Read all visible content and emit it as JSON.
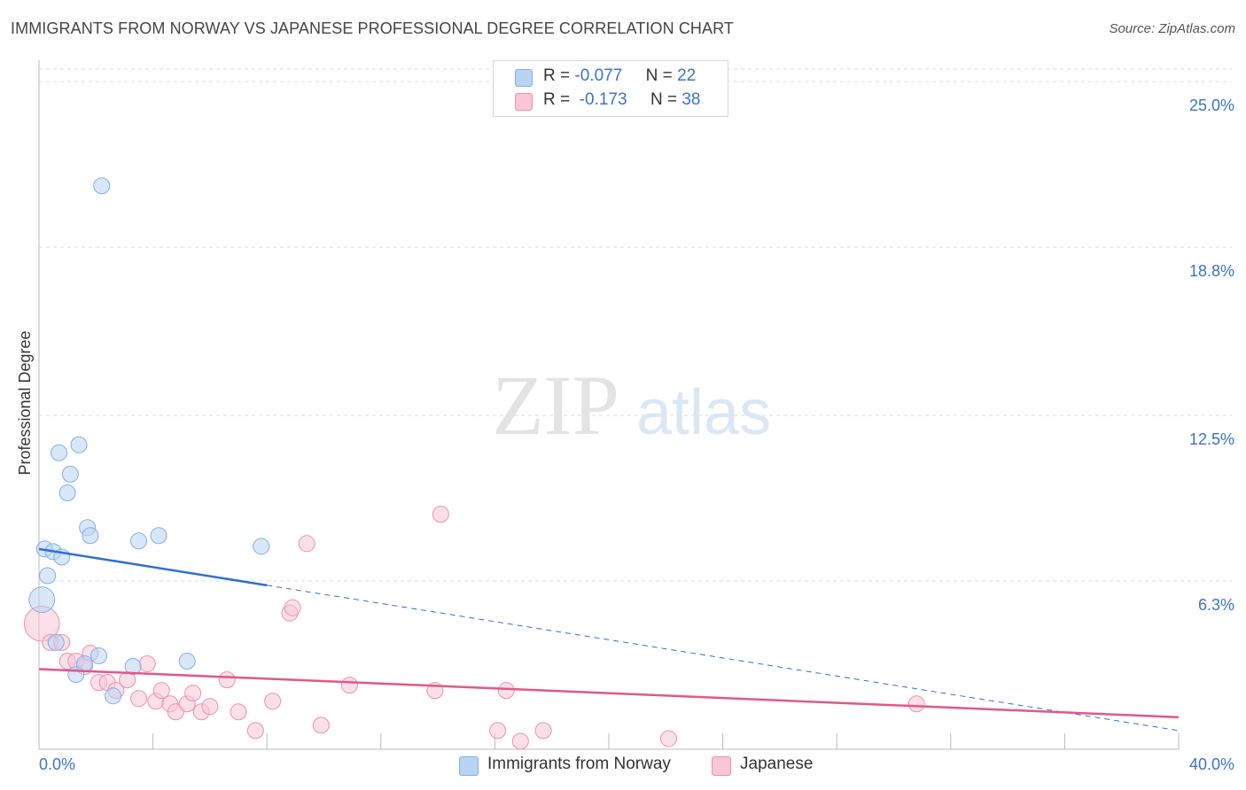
{
  "title": "IMMIGRANTS FROM NORWAY VS JAPANESE PROFESSIONAL DEGREE CORRELATION CHART",
  "source": "Source: ZipAtlas.com",
  "watermark": {
    "zip": "ZIP",
    "atlas": "atlas"
  },
  "legend": {
    "series1": {
      "r_label": "R =",
      "r_value": "-0.077",
      "n_label": "N =",
      "n_value": "22"
    },
    "series2": {
      "r_label": "R =",
      "r_value": "-0.173",
      "n_label": "N =",
      "n_value": "38"
    }
  },
  "colors": {
    "blue": "#7fb0e8",
    "blue_fill": "#b9d3f3",
    "blue_line": "#2f6fd0",
    "pink": "#ee8fb0",
    "pink_fill": "#f8c6d6",
    "pink_line": "#e0588a",
    "axis_label": "#3b73c8",
    "grid": "#dddddd"
  },
  "chart_data": {
    "type": "scatter",
    "title": "IMMIGRANTS FROM NORWAY VS JAPANESE PROFESSIONAL DEGREE CORRELATION CHART",
    "xlabel": "",
    "ylabel": "Professional Degree",
    "xlim": [
      0,
      40
    ],
    "ylim": [
      0,
      25.8
    ],
    "x_tick_labels": {
      "min": "0.0%",
      "max": "40.0%"
    },
    "y_ticks": [
      {
        "value": 6.3,
        "label": "6.3%"
      },
      {
        "value": 12.5,
        "label": "12.5%"
      },
      {
        "value": 18.8,
        "label": "18.8%"
      },
      {
        "value": 25.0,
        "label": "25.0%"
      }
    ],
    "series": [
      {
        "name": "Immigrants from Norway",
        "r": -0.077,
        "n": 22,
        "trend": {
          "x0": 0,
          "y0": 7.5,
          "x_solid_end": 8,
          "x1": 40,
          "y1": 0.7
        },
        "points": [
          {
            "x": 2.2,
            "y": 21.1,
            "s": 1
          },
          {
            "x": 0.7,
            "y": 11.1,
            "s": 1
          },
          {
            "x": 1.4,
            "y": 11.4,
            "s": 1
          },
          {
            "x": 1.1,
            "y": 10.3,
            "s": 1
          },
          {
            "x": 1.0,
            "y": 9.6,
            "s": 1
          },
          {
            "x": 1.7,
            "y": 8.3,
            "s": 1
          },
          {
            "x": 1.8,
            "y": 8.0,
            "s": 1
          },
          {
            "x": 3.5,
            "y": 7.8,
            "s": 1
          },
          {
            "x": 4.2,
            "y": 8.0,
            "s": 1
          },
          {
            "x": 7.8,
            "y": 7.6,
            "s": 1
          },
          {
            "x": 0.2,
            "y": 7.5,
            "s": 1
          },
          {
            "x": 0.5,
            "y": 7.4,
            "s": 1
          },
          {
            "x": 0.8,
            "y": 7.2,
            "s": 1
          },
          {
            "x": 0.3,
            "y": 6.5,
            "s": 1
          },
          {
            "x": 0.1,
            "y": 5.6,
            "s": 1.6
          },
          {
            "x": 0.6,
            "y": 4.0,
            "s": 1
          },
          {
            "x": 2.1,
            "y": 3.5,
            "s": 1
          },
          {
            "x": 1.6,
            "y": 3.2,
            "s": 1
          },
          {
            "x": 3.3,
            "y": 3.1,
            "s": 1
          },
          {
            "x": 5.2,
            "y": 3.3,
            "s": 1
          },
          {
            "x": 1.3,
            "y": 2.8,
            "s": 1
          },
          {
            "x": 2.6,
            "y": 2.0,
            "s": 1
          }
        ]
      },
      {
        "name": "Japanese",
        "r": -0.173,
        "n": 38,
        "trend": {
          "x0": 0,
          "y0": 3.0,
          "x1": 40,
          "y1": 1.2
        },
        "points": [
          {
            "x": 0.1,
            "y": 4.7,
            "s": 2.2
          },
          {
            "x": 0.4,
            "y": 4.0,
            "s": 1
          },
          {
            "x": 0.8,
            "y": 4.0,
            "s": 1
          },
          {
            "x": 1.0,
            "y": 3.3,
            "s": 1
          },
          {
            "x": 1.3,
            "y": 3.3,
            "s": 1
          },
          {
            "x": 1.6,
            "y": 3.1,
            "s": 1
          },
          {
            "x": 1.8,
            "y": 3.6,
            "s": 1
          },
          {
            "x": 2.1,
            "y": 2.5,
            "s": 1
          },
          {
            "x": 2.4,
            "y": 2.5,
            "s": 1
          },
          {
            "x": 2.7,
            "y": 2.2,
            "s": 1
          },
          {
            "x": 3.1,
            "y": 2.6,
            "s": 1
          },
          {
            "x": 3.5,
            "y": 1.9,
            "s": 1
          },
          {
            "x": 3.8,
            "y": 3.2,
            "s": 1
          },
          {
            "x": 4.1,
            "y": 1.8,
            "s": 1
          },
          {
            "x": 4.3,
            "y": 2.2,
            "s": 1
          },
          {
            "x": 4.6,
            "y": 1.7,
            "s": 1
          },
          {
            "x": 4.8,
            "y": 1.4,
            "s": 1
          },
          {
            "x": 5.2,
            "y": 1.7,
            "s": 1
          },
          {
            "x": 5.4,
            "y": 2.1,
            "s": 1
          },
          {
            "x": 5.7,
            "y": 1.4,
            "s": 1
          },
          {
            "x": 6.0,
            "y": 1.6,
            "s": 1
          },
          {
            "x": 6.6,
            "y": 2.6,
            "s": 1
          },
          {
            "x": 7.0,
            "y": 1.4,
            "s": 1
          },
          {
            "x": 7.6,
            "y": 0.7,
            "s": 1
          },
          {
            "x": 8.2,
            "y": 1.8,
            "s": 1
          },
          {
            "x": 8.8,
            "y": 5.1,
            "s": 1
          },
          {
            "x": 8.9,
            "y": 5.3,
            "s": 1
          },
          {
            "x": 9.4,
            "y": 7.7,
            "s": 1
          },
          {
            "x": 9.9,
            "y": 0.9,
            "s": 1
          },
          {
            "x": 10.9,
            "y": 2.4,
            "s": 1
          },
          {
            "x": 13.9,
            "y": 2.2,
            "s": 1
          },
          {
            "x": 14.1,
            "y": 8.8,
            "s": 1
          },
          {
            "x": 16.1,
            "y": 0.7,
            "s": 1
          },
          {
            "x": 16.4,
            "y": 2.2,
            "s": 1
          },
          {
            "x": 16.9,
            "y": 0.3,
            "s": 1
          },
          {
            "x": 17.7,
            "y": 0.7,
            "s": 1
          },
          {
            "x": 22.1,
            "y": 0.4,
            "s": 1
          },
          {
            "x": 30.8,
            "y": 1.7,
            "s": 1
          }
        ]
      }
    ]
  }
}
